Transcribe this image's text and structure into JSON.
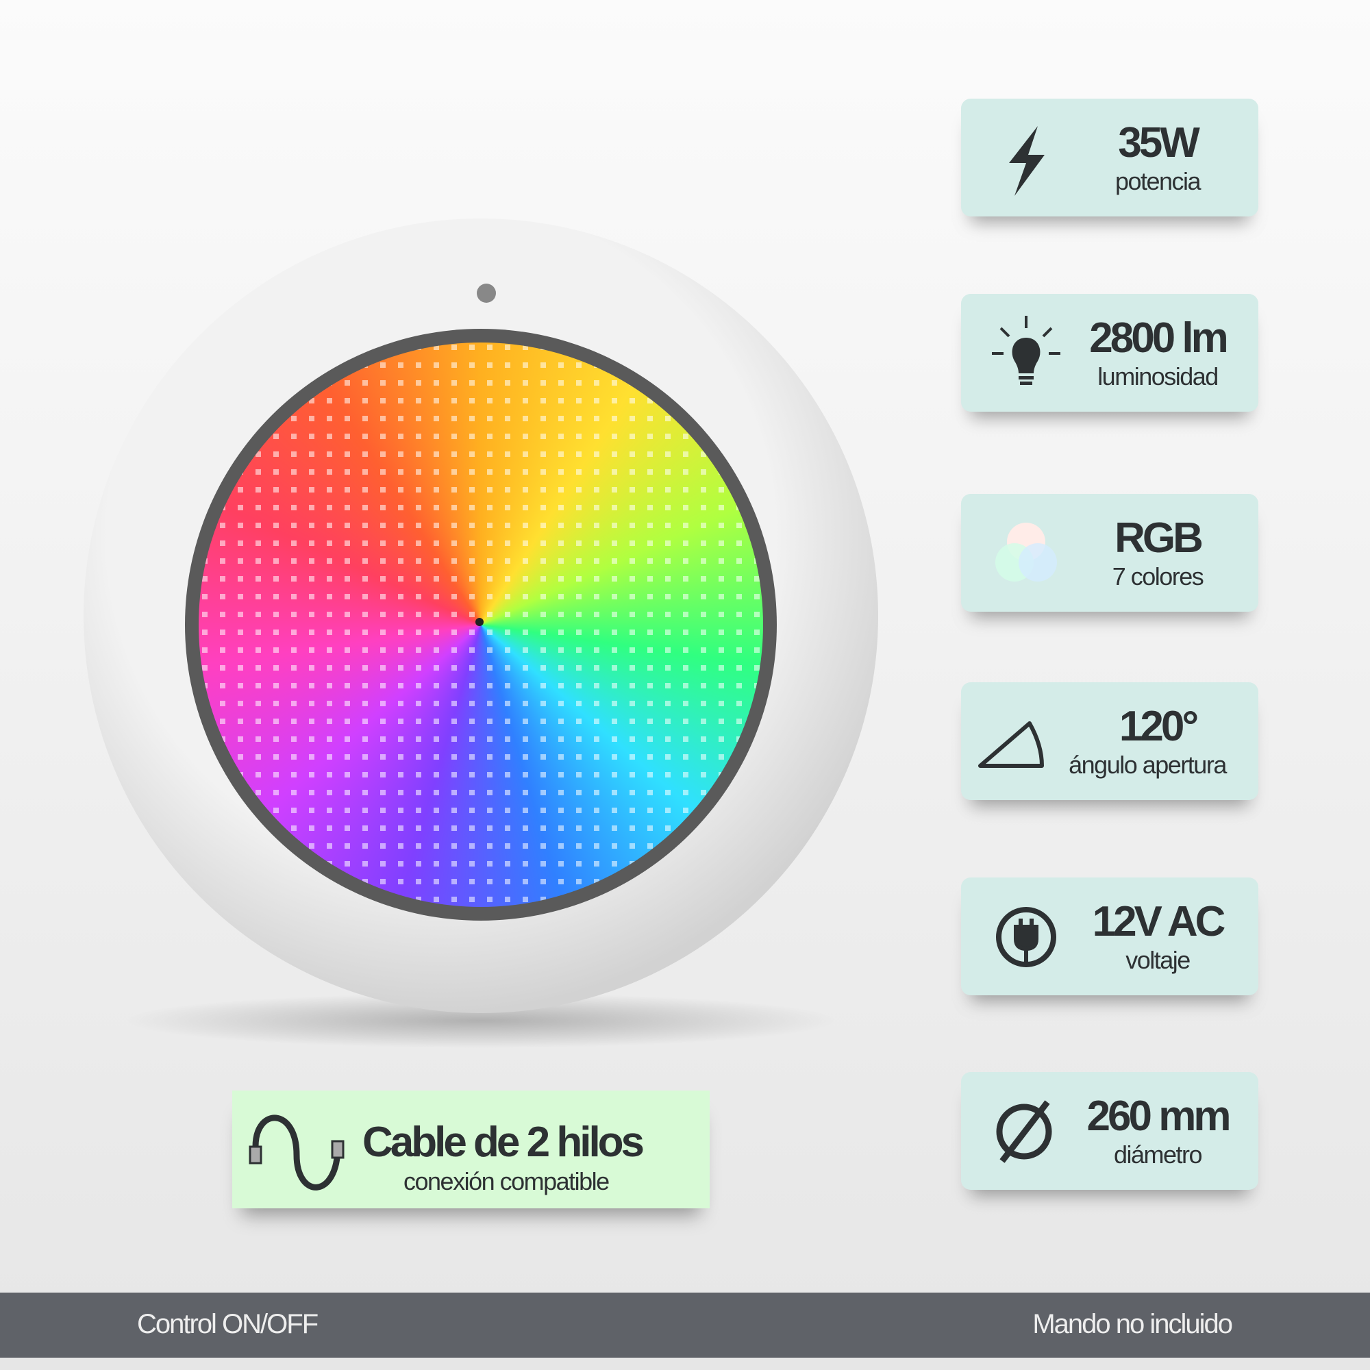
{
  "specs": [
    {
      "value": "35W",
      "label": "potencia",
      "icon": "lightning-icon"
    },
    {
      "value": "2800 lm",
      "label": "luminosidad",
      "icon": "lightbulb-icon"
    },
    {
      "value": "RGB",
      "label": "7 colores",
      "icon": "rgb-circles-icon"
    },
    {
      "value": "120°",
      "label": "ángulo apertura",
      "icon": "angle-triangle-icon"
    },
    {
      "value": "12V AC",
      "label": "voltaje",
      "icon": "plug-icon"
    },
    {
      "value": "260 mm",
      "label": "diámetro",
      "icon": "diameter-icon"
    }
  ],
  "cable": {
    "title": "Cable de 2 hilos",
    "subtitle": "conexión compatible",
    "icon": "cable-icon"
  },
  "footer": {
    "left": "Control ON/OFF",
    "right": "Mando no incluido"
  },
  "colors": {
    "card": "#d4ece8",
    "cable_card": "#d8fad6",
    "footer": "#5f6268",
    "text": "#2d3133"
  }
}
